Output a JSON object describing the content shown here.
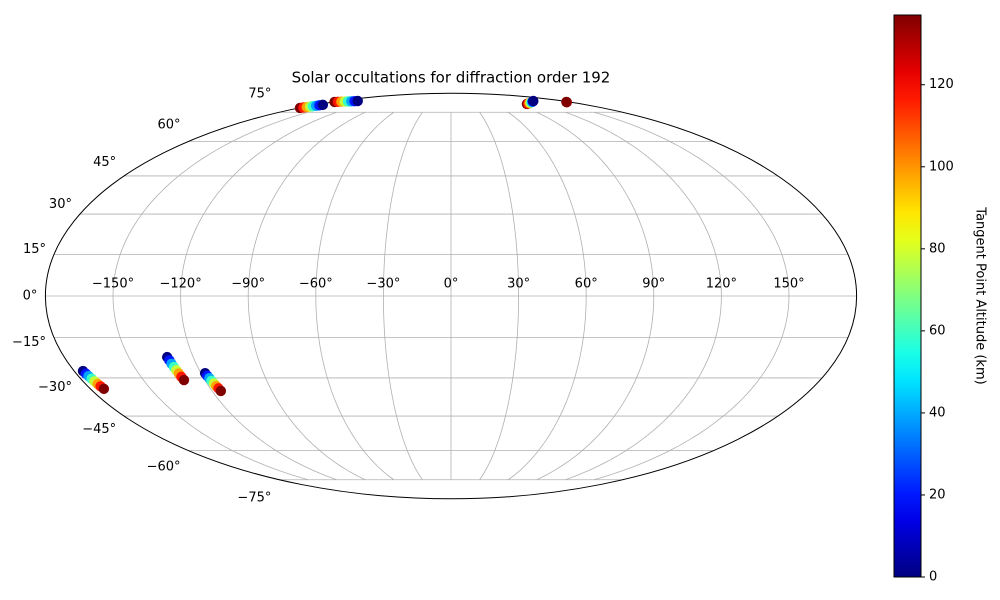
{
  "chart_data": {
    "type": "scatter",
    "projection": "mollweide",
    "title": "Solar occultations for diffraction order 192",
    "xlim": [
      -180,
      180
    ],
    "ylim": [
      -90,
      90
    ],
    "grid": true,
    "grid_color": "#b0b0b0",
    "xticks": [
      {
        "value": -150,
        "label": "−150°"
      },
      {
        "value": -120,
        "label": "−120°"
      },
      {
        "value": -90,
        "label": "−90°"
      },
      {
        "value": -60,
        "label": "−60°"
      },
      {
        "value": -30,
        "label": "−30°"
      },
      {
        "value": 0,
        "label": "0°"
      },
      {
        "value": 30,
        "label": "30°"
      },
      {
        "value": 60,
        "label": "60°"
      },
      {
        "value": 90,
        "label": "90°"
      },
      {
        "value": 120,
        "label": "120°"
      },
      {
        "value": 150,
        "label": "150°"
      }
    ],
    "yticks": [
      {
        "value": -75,
        "label": "−75°"
      },
      {
        "value": -60,
        "label": "−60°"
      },
      {
        "value": -45,
        "label": "−45°"
      },
      {
        "value": -30,
        "label": "−30°"
      },
      {
        "value": -15,
        "label": "−15°"
      },
      {
        "value": 0,
        "label": "0°"
      },
      {
        "value": 15,
        "label": "15°"
      },
      {
        "value": 30,
        "label": "30°"
      },
      {
        "value": 45,
        "label": "45°"
      },
      {
        "value": 60,
        "label": "60°"
      },
      {
        "value": 75,
        "label": "75°"
      }
    ],
    "colormap": "jet",
    "colorbar": {
      "label": "Tangent Point Altitude (km)",
      "lim": [
        0,
        137
      ],
      "ticks": [
        0,
        20,
        40,
        60,
        80,
        100,
        120
      ]
    },
    "series": [
      {
        "x": [
          -175.8,
          -175.4,
          -175.1,
          -174.7,
          -174.4,
          -174.0,
          -173.7,
          -173.3
        ],
        "y": [
          -27.4,
          -28.4,
          -29.3,
          -30.3,
          -31.3,
          -32.3,
          -33.2,
          -34.2
        ],
        "c": [
          0,
          20,
          39,
          59,
          78,
          98,
          117,
          137
        ]
      },
      {
        "x": [
          -132.1,
          -131.8,
          -131.6,
          -131.3,
          -131.0,
          -130.7,
          -130.5,
          -130.2
        ],
        "y": [
          -22.2,
          -23.4,
          -24.7,
          -25.9,
          -27.1,
          -28.3,
          -29.6,
          -30.8
        ],
        "c": [
          0,
          20,
          39,
          59,
          78,
          98,
          117,
          137
        ]
      },
      {
        "x": [
          -118.0,
          -117.7,
          -117.3,
          -117.0,
          -116.6,
          -116.3,
          -115.9,
          -115.6
        ],
        "y": [
          -28.2,
          -29.2,
          -30.1,
          -31.1,
          -32.1,
          -33.1,
          -34.0,
          -35.0
        ],
        "c": [
          0,
          20,
          39,
          59,
          78,
          98,
          117,
          137
        ]
      },
      {
        "x": [
          -178.9,
          -177.6,
          -176.4,
          -175.1,
          -173.9,
          -172.6,
          -171.4,
          -170.1
        ],
        "y": [
          77.6,
          77.9,
          78.2,
          78.5,
          78.7,
          79.0,
          79.3,
          79.6
        ],
        "c": [
          137,
          117,
          98,
          78,
          59,
          39,
          20,
          0
        ]
      },
      {
        "x": [
          -177.6,
          -173.7,
          -169.9,
          -166.0,
          -162.2,
          -158.3,
          -154.5,
          -150.6
        ],
        "y": [
          81.6,
          81.7,
          81.8,
          81.9,
          82.0,
          82.1,
          82.2,
          82.3
        ],
        "c": [
          137,
          117,
          98,
          78,
          59,
          39,
          20,
          0
        ]
      },
      {
        "x": [
          104.8,
          108.8,
          112.8,
          116.8,
          120.9,
          124.9,
          128.9,
          132.9
        ],
        "y": [
          80.2,
          80.5,
          80.8,
          81.1,
          81.4,
          81.7,
          82.0,
          82.3
        ],
        "c": [
          137,
          117,
          98,
          78,
          59,
          39,
          20,
          0
        ]
      },
      {
        "x": [
          174.0,
          176.0
        ],
        "y": [
          81.4,
          81.6
        ],
        "c": [
          130,
          137
        ]
      }
    ]
  }
}
